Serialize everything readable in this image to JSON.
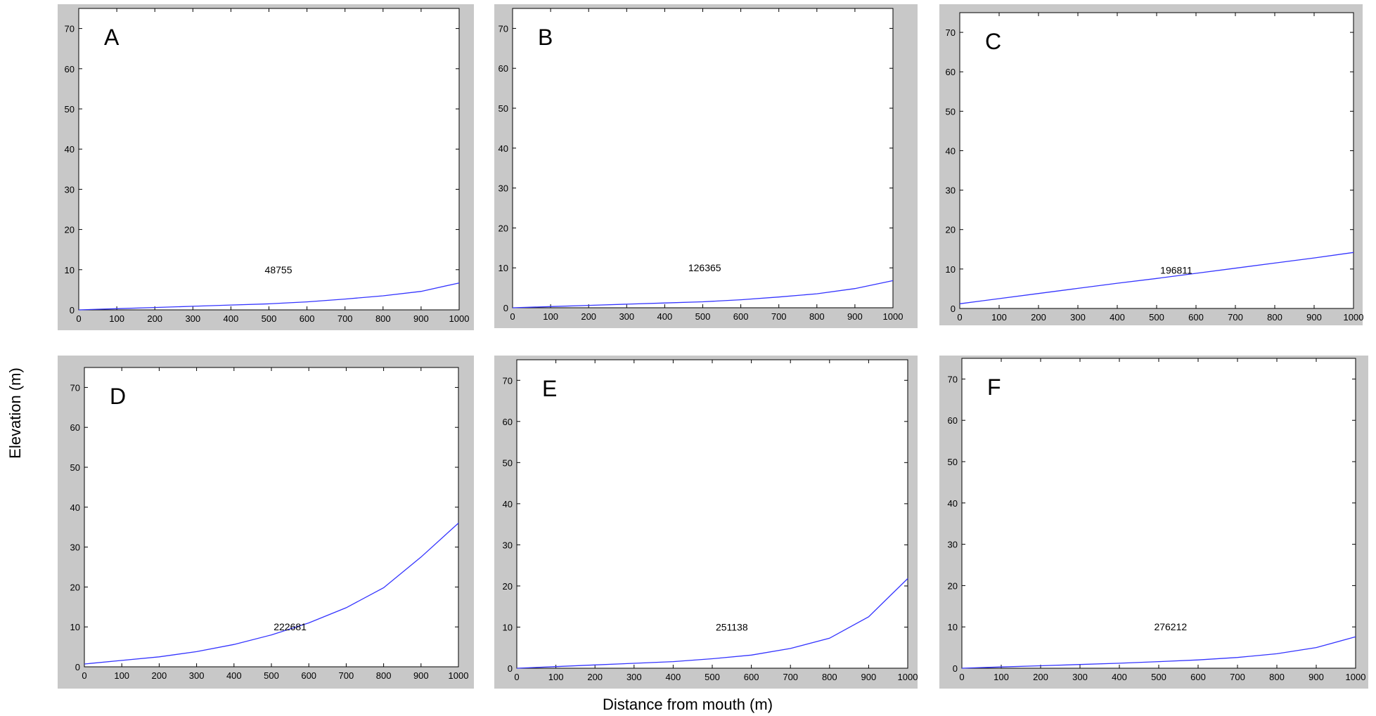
{
  "figure": {
    "xlabel": "Distance from mouth (m)",
    "ylabel": "Elevation (m)"
  },
  "colors": {
    "line": "#3434ff",
    "frame": "#c8c8c8",
    "plot_bg": "#ffffff",
    "axis": "#000000"
  },
  "chart_data": [
    {
      "type": "line",
      "panel_label": "A",
      "annotation": "48755",
      "annotation_at": [
        525,
        10
      ],
      "xlim": [
        0,
        1000
      ],
      "ylim": [
        0,
        75
      ],
      "x_ticks": [
        0,
        100,
        200,
        300,
        400,
        500,
        600,
        700,
        800,
        900,
        1000
      ],
      "y_ticks": [
        0,
        10,
        20,
        30,
        40,
        50,
        60,
        70
      ],
      "series": [
        {
          "x": [
            0,
            100,
            200,
            300,
            400,
            500,
            600,
            700,
            800,
            900,
            1000
          ],
          "y": [
            0,
            0.3,
            0.6,
            0.9,
            1.2,
            1.5,
            2.0,
            2.7,
            3.5,
            4.6,
            6.7
          ]
        }
      ]
    },
    {
      "type": "line",
      "panel_label": "B",
      "annotation": "126365",
      "annotation_at": [
        505,
        10
      ],
      "xlim": [
        0,
        1000
      ],
      "ylim": [
        0,
        75
      ],
      "x_ticks": [
        0,
        100,
        200,
        300,
        400,
        500,
        600,
        700,
        800,
        900,
        1000
      ],
      "y_ticks": [
        0,
        10,
        20,
        30,
        40,
        50,
        60,
        70
      ],
      "series": [
        {
          "x": [
            0,
            100,
            200,
            300,
            400,
            500,
            600,
            700,
            800,
            900,
            1000
          ],
          "y": [
            0,
            0.3,
            0.6,
            0.9,
            1.2,
            1.5,
            2.0,
            2.7,
            3.5,
            4.8,
            6.8
          ]
        }
      ]
    },
    {
      "type": "line",
      "panel_label": "C",
      "annotation": "196811",
      "annotation_at": [
        550,
        9.7
      ],
      "xlim": [
        0,
        1000
      ],
      "ylim": [
        0,
        75
      ],
      "x_ticks": [
        0,
        100,
        200,
        300,
        400,
        500,
        600,
        700,
        800,
        900,
        1000
      ],
      "y_ticks": [
        0,
        10,
        20,
        30,
        40,
        50,
        60,
        70
      ],
      "series": [
        {
          "x": [
            0,
            100,
            200,
            300,
            400,
            500,
            600,
            700,
            800,
            900,
            1000
          ],
          "y": [
            1.2,
            2.5,
            3.8,
            5.1,
            6.4,
            7.6,
            8.9,
            10.2,
            11.5,
            12.8,
            14.2
          ]
        }
      ]
    },
    {
      "type": "line",
      "panel_label": "D",
      "annotation": "222681",
      "annotation_at": [
        550,
        10
      ],
      "xlim": [
        0,
        1000
      ],
      "ylim": [
        0,
        75
      ],
      "x_ticks": [
        0,
        100,
        200,
        300,
        400,
        500,
        600,
        700,
        800,
        900,
        1000
      ],
      "y_ticks": [
        0,
        10,
        20,
        30,
        40,
        50,
        60,
        70
      ],
      "series": [
        {
          "x": [
            0,
            100,
            200,
            300,
            400,
            500,
            600,
            700,
            800,
            900,
            1000
          ],
          "y": [
            0.7,
            1.6,
            2.5,
            3.8,
            5.6,
            8.0,
            11.0,
            14.8,
            19.8,
            27.5,
            36.0
          ]
        }
      ]
    },
    {
      "type": "line",
      "panel_label": "E",
      "annotation": "251138",
      "annotation_at": [
        550,
        10
      ],
      "xlim": [
        0,
        1000
      ],
      "ylim": [
        0,
        75
      ],
      "x_ticks": [
        0,
        100,
        200,
        300,
        400,
        500,
        600,
        700,
        800,
        900,
        1000
      ],
      "y_ticks": [
        0,
        10,
        20,
        30,
        40,
        50,
        60,
        70
      ],
      "series": [
        {
          "x": [
            0,
            100,
            200,
            300,
            400,
            500,
            600,
            700,
            800,
            900,
            1000
          ],
          "y": [
            0,
            0.4,
            0.8,
            1.2,
            1.6,
            2.3,
            3.2,
            4.8,
            7.3,
            12.5,
            21.8
          ]
        }
      ]
    },
    {
      "type": "line",
      "panel_label": "F",
      "annotation": "276212",
      "annotation_at": [
        530,
        10
      ],
      "xlim": [
        0,
        1000
      ],
      "ylim": [
        0,
        75
      ],
      "x_ticks": [
        0,
        100,
        200,
        300,
        400,
        500,
        600,
        700,
        800,
        900,
        1000
      ],
      "y_ticks": [
        0,
        10,
        20,
        30,
        40,
        50,
        60,
        70
      ],
      "series": [
        {
          "x": [
            0,
            100,
            200,
            300,
            400,
            500,
            600,
            700,
            800,
            900,
            1000
          ],
          "y": [
            0,
            0.3,
            0.6,
            0.9,
            1.2,
            1.6,
            2.0,
            2.6,
            3.5,
            5.0,
            7.6
          ]
        }
      ]
    }
  ]
}
